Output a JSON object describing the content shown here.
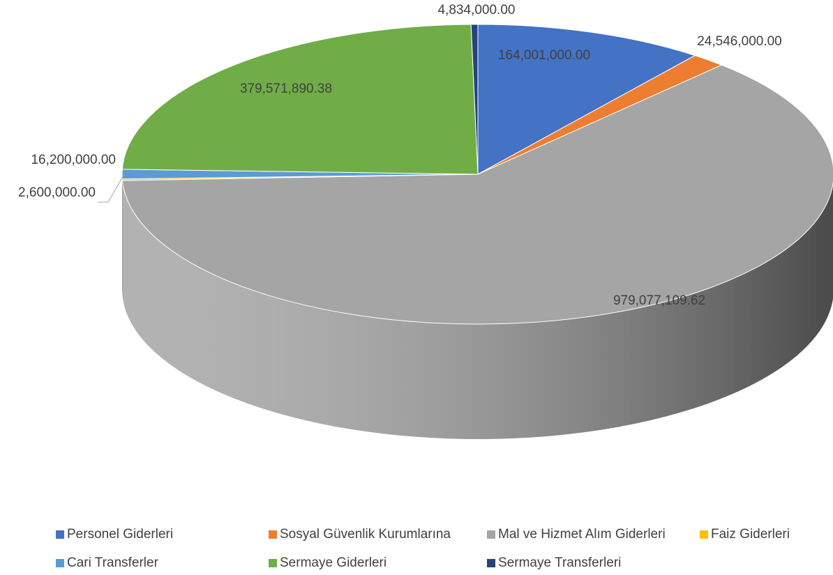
{
  "chart_data": {
    "type": "pie",
    "categories": [
      "Personel Giderleri",
      "Sosyal Güvenlik Kurumlarına",
      "Mal ve Hizmet Alım Giderleri",
      "Faiz Giderleri",
      "Cari Transferler",
      "Sermaye Giderleri",
      "Sermaye Transferleri"
    ],
    "values": [
      164001000,
      24546000,
      979077109.62,
      2600000,
      16200000,
      379571890.38,
      4834000
    ],
    "value_labels": [
      "164,001,000.00",
      "24,546,000.00",
      "979,077,109.62",
      "2,600,000.00",
      "16,200,000.00",
      "379,571,890.38",
      "4,834,000.00"
    ],
    "colors": [
      "#4472c4",
      "#ed7d31",
      "#a5a5a5",
      "#ffc000",
      "#5b9bd5",
      "#70ad47",
      "#264478"
    ],
    "legend": "bottom"
  }
}
